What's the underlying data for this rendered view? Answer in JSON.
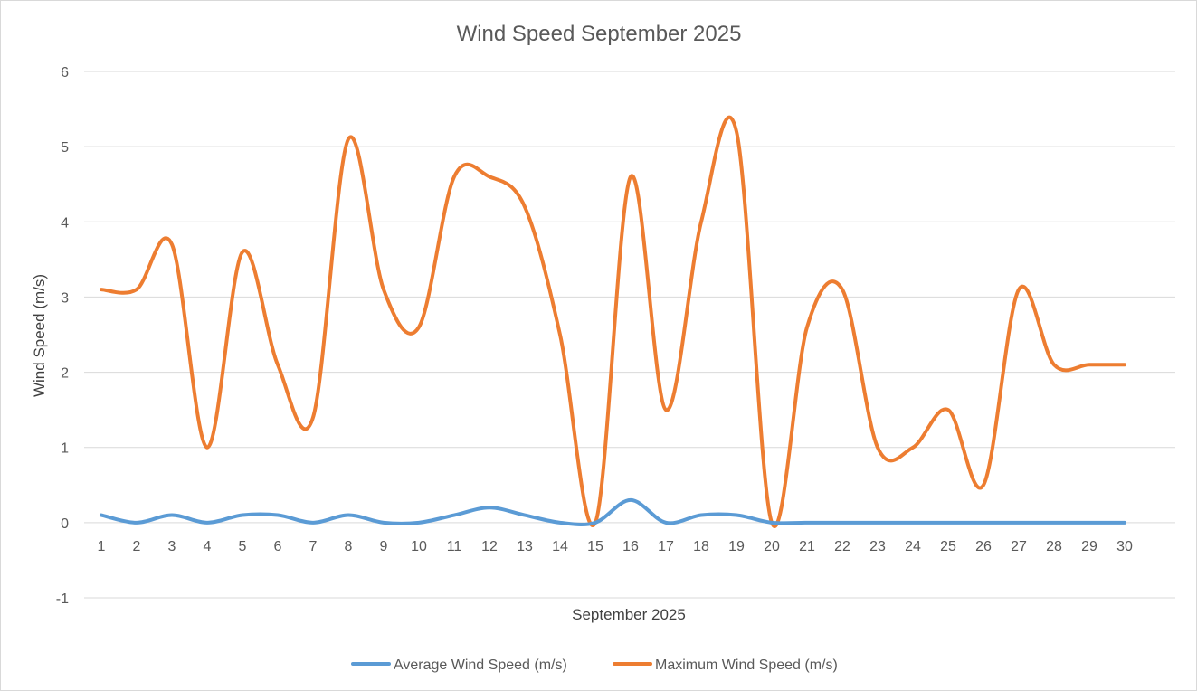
{
  "chart_data": {
    "type": "line",
    "title": "Wind Speed September 2025",
    "xlabel": "September 2025",
    "ylabel": "Wind Speed (m/s)",
    "ylim": [
      -1,
      6
    ],
    "y_ticks": [
      "-1",
      "0",
      "1",
      "2",
      "3",
      "4",
      "5",
      "6"
    ],
    "categories": [
      "1",
      "2",
      "3",
      "4",
      "5",
      "6",
      "7",
      "8",
      "9",
      "10",
      "11",
      "12",
      "13",
      "14",
      "15",
      "16",
      "17",
      "18",
      "19",
      "20",
      "21",
      "22",
      "23",
      "24",
      "25",
      "26",
      "27",
      "28",
      "29",
      "30"
    ],
    "grid": true,
    "smooth": true,
    "legend_position": "bottom",
    "series": [
      {
        "name": "Average Wind Speed (m/s)",
        "color": "#5b9bd5",
        "values": [
          0.1,
          0,
          0.1,
          0,
          0.1,
          0.1,
          0,
          0.1,
          0,
          0,
          0.1,
          0.2,
          0.1,
          0,
          0,
          0.3,
          0,
          0.1,
          0.1,
          0,
          0,
          0,
          0,
          0,
          0,
          0,
          0,
          0,
          0,
          0
        ]
      },
      {
        "name": "Maximum Wind Speed (m/s)",
        "color": "#ed7d31",
        "values": [
          3.1,
          3.1,
          3.7,
          1.0,
          3.6,
          2.1,
          1.4,
          5.1,
          3.1,
          2.6,
          4.6,
          4.6,
          4.2,
          2.5,
          0,
          4.6,
          1.5,
          4.0,
          5.2,
          0,
          2.6,
          3.1,
          1.0,
          1.0,
          1.5,
          0.5,
          3.1,
          2.1,
          2.1,
          2.1
        ]
      }
    ]
  }
}
